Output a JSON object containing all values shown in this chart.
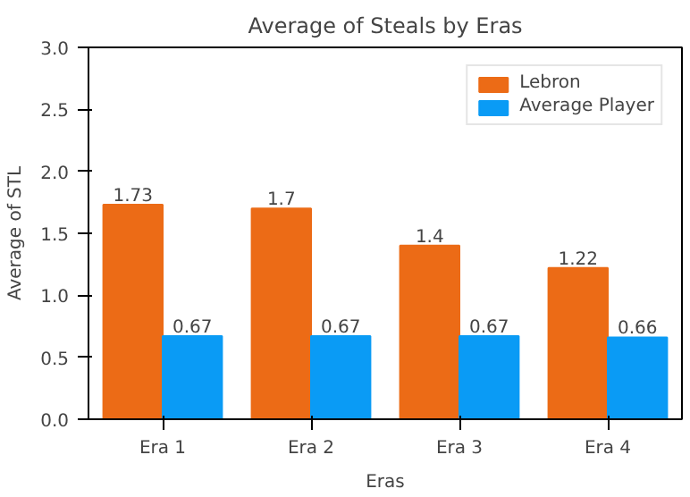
{
  "chart_data": {
    "type": "bar",
    "title": "Average of Steals by Eras",
    "xlabel": "Eras",
    "ylabel": "Average of STL",
    "categories": [
      "Era 1",
      "Era 2",
      "Era 3",
      "Era 4"
    ],
    "series": [
      {
        "name": "Lebron",
        "color": "#ec6b16",
        "values": [
          1.73,
          1.7,
          1.4,
          1.22
        ]
      },
      {
        "name": "Average Player",
        "color": "#0a9bf5",
        "values": [
          0.67,
          0.67,
          0.67,
          0.66
        ]
      }
    ],
    "ylim": [
      0,
      3
    ],
    "yticks": [
      {
        "value": 0,
        "label": "0.0"
      },
      {
        "value": 0.5,
        "label": "0.5"
      },
      {
        "value": 1,
        "label": "1.0"
      },
      {
        "value": 1.5,
        "label": "1.5"
      },
      {
        "value": 2,
        "label": "2.0"
      },
      {
        "value": 2.5,
        "label": "2.5"
      },
      {
        "value": 3,
        "label": "3.0"
      }
    ],
    "data_labels": true,
    "legend": "top right",
    "grid": false
  }
}
